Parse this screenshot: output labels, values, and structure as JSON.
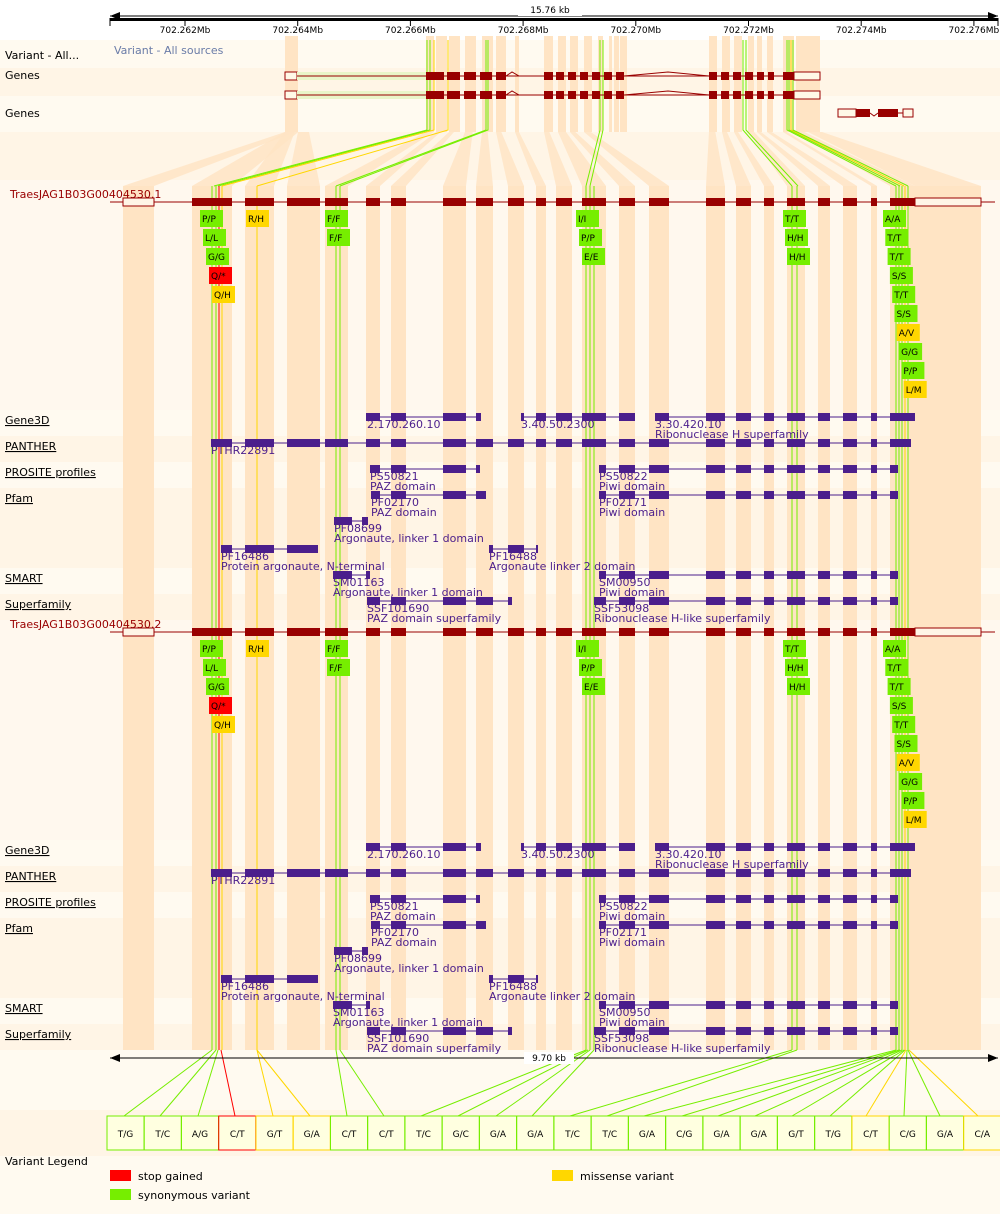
{
  "scale_top": {
    "length": "15.76 kb",
    "ticks": [
      "702.262Mb",
      "702.264Mb",
      "702.266Mb",
      "702.268Mb",
      "702.270Mb",
      "702.272Mb",
      "702.274Mb",
      "702.276Mb"
    ]
  },
  "track_labels": {
    "variant_all": "Variant - All...",
    "variant_all_sources": "Variant - All sources",
    "genes1": "Genes",
    "genes2": "Genes",
    "variant_legend": "Variant Legend"
  },
  "transcripts": [
    {
      "name": "TraesJAG1B03G00404530.1",
      "domain_labels": [
        "Gene3D",
        "PANTHER",
        "PROSITE profiles",
        "Pfam",
        "SMART",
        "Superfamily"
      ],
      "features": {
        "gene3d": [
          {
            "id": "2.170.260.10",
            "desc": ""
          },
          {
            "id": "3.40.50.2300",
            "desc": ""
          },
          {
            "id": "3.30.420.10",
            "desc": "Ribonuclease H superfamily"
          }
        ],
        "panther": [
          {
            "id": "PTHR22891",
            "desc": ""
          }
        ],
        "prosite": [
          {
            "id": "PS50821",
            "desc": "PAZ domain"
          },
          {
            "id": "PS50822",
            "desc": "Piwi domain"
          }
        ],
        "pfam": [
          {
            "id": "PF02170",
            "desc": "PAZ domain"
          },
          {
            "id": "PF02171",
            "desc": "Piwi domain"
          },
          {
            "id": "PF08699",
            "desc": "Argonaute, linker 1 domain"
          },
          {
            "id": "PF16486",
            "desc": "Protein argonaute, N-terminal"
          },
          {
            "id": "PF16488",
            "desc": "Argonaute linker 2 domain"
          }
        ],
        "smart": [
          {
            "id": "SM01163",
            "desc": "Argonaute, linker 1 domain"
          },
          {
            "id": "SM00950",
            "desc": "Piwi domain"
          }
        ],
        "superfamily": [
          {
            "id": "SSF101690",
            "desc": "PAZ domain superfamily"
          },
          {
            "id": "SSF53098",
            "desc": "Ribonuclease H-like superfamily"
          }
        ]
      }
    },
    {
      "name": "TraesJAG1B03G00404530.2",
      "domain_labels": [
        "Gene3D",
        "PANTHER",
        "PROSITE profiles",
        "Pfam",
        "SMART",
        "Superfamily"
      ],
      "features": {
        "gene3d": [
          {
            "id": "2.170.260.10",
            "desc": ""
          },
          {
            "id": "3.40.50.2300",
            "desc": ""
          },
          {
            "id": "3.30.420.10",
            "desc": "Ribonuclease H superfamily"
          }
        ],
        "panther": [
          {
            "id": "PTHR22891",
            "desc": ""
          }
        ],
        "prosite": [
          {
            "id": "PS50821",
            "desc": "PAZ domain"
          },
          {
            "id": "PS50822",
            "desc": "Piwi domain"
          }
        ],
        "pfam": [
          {
            "id": "PF02170",
            "desc": "PAZ domain"
          },
          {
            "id": "PF02171",
            "desc": "Piwi domain"
          },
          {
            "id": "PF08699",
            "desc": "Argonaute, linker 1 domain"
          },
          {
            "id": "PF16486",
            "desc": "Protein argonaute, N-terminal"
          },
          {
            "id": "PF16488",
            "desc": "Argonaute linker 2 domain"
          }
        ],
        "smart": [
          {
            "id": "SM01163",
            "desc": "Argonaute, linker 1 domain"
          },
          {
            "id": "SM00950",
            "desc": "Piwi domain"
          }
        ],
        "superfamily": [
          {
            "id": "SSF101690",
            "desc": "PAZ domain superfamily"
          },
          {
            "id": "SSF53098",
            "desc": "Ribonuclease H-like superfamily"
          }
        ]
      }
    }
  ],
  "aa_variants": [
    {
      "col": 0,
      "labels": [
        "P/P",
        "L/L",
        "G/G",
        "Q/*",
        "Q/H"
      ],
      "types": [
        "syn",
        "syn",
        "syn",
        "stop",
        "mis"
      ]
    },
    {
      "col": 1,
      "labels": [
        "R/H"
      ],
      "types": [
        "mis"
      ]
    },
    {
      "col": 2,
      "labels": [
        "F/F",
        "F/F"
      ],
      "types": [
        "syn",
        "syn"
      ]
    },
    {
      "col": 3,
      "labels": [
        "I/I",
        "P/P",
        "E/E"
      ],
      "types": [
        "syn",
        "syn",
        "syn"
      ]
    },
    {
      "col": 4,
      "labels": [
        "T/T",
        "H/H",
        "H/H"
      ],
      "types": [
        "syn",
        "syn",
        "syn"
      ]
    },
    {
      "col": 5,
      "labels": [
        "A/A",
        "T/T",
        "T/T",
        "S/S",
        "T/T",
        "S/S",
        "A/V",
        "G/G",
        "P/P",
        "L/M"
      ],
      "types": [
        "syn",
        "syn",
        "syn",
        "syn",
        "syn",
        "syn",
        "mis",
        "syn",
        "syn",
        "mis"
      ]
    }
  ],
  "scale_bottom": {
    "length": "9.70 kb"
  },
  "snp_boxes": [
    {
      "allele": "T/G",
      "type": "syn"
    },
    {
      "allele": "T/C",
      "type": "syn"
    },
    {
      "allele": "A/G",
      "type": "syn"
    },
    {
      "allele": "C/T",
      "type": "stop"
    },
    {
      "allele": "G/T",
      "type": "mis"
    },
    {
      "allele": "G/A",
      "type": "mis"
    },
    {
      "allele": "C/T",
      "type": "syn"
    },
    {
      "allele": "C/T",
      "type": "syn"
    },
    {
      "allele": "T/C",
      "type": "syn"
    },
    {
      "allele": "G/C",
      "type": "syn"
    },
    {
      "allele": "G/A",
      "type": "syn"
    },
    {
      "allele": "G/A",
      "type": "syn"
    },
    {
      "allele": "T/C",
      "type": "syn"
    },
    {
      "allele": "T/C",
      "type": "syn"
    },
    {
      "allele": "G/A",
      "type": "syn"
    },
    {
      "allele": "C/G",
      "type": "syn"
    },
    {
      "allele": "G/A",
      "type": "syn"
    },
    {
      "allele": "G/A",
      "type": "syn"
    },
    {
      "allele": "G/T",
      "type": "syn"
    },
    {
      "allele": "T/G",
      "type": "syn"
    },
    {
      "allele": "C/T",
      "type": "mis"
    },
    {
      "allele": "C/G",
      "type": "syn"
    },
    {
      "allele": "G/A",
      "type": "syn"
    },
    {
      "allele": "C/A",
      "type": "mis"
    }
  ],
  "legend": [
    {
      "label": "stop gained",
      "color": "#ff0000"
    },
    {
      "label": "synonymous variant",
      "color": "#76ee00"
    },
    {
      "label": "missense variant",
      "color": "#ffd700"
    }
  ],
  "colors": {
    "exon": "#990000",
    "domain": "#4b1e8c",
    "band": "#ffe4c4",
    "syn": "#76ee00",
    "mis": "#ffd700",
    "stop": "#ff0000"
  }
}
